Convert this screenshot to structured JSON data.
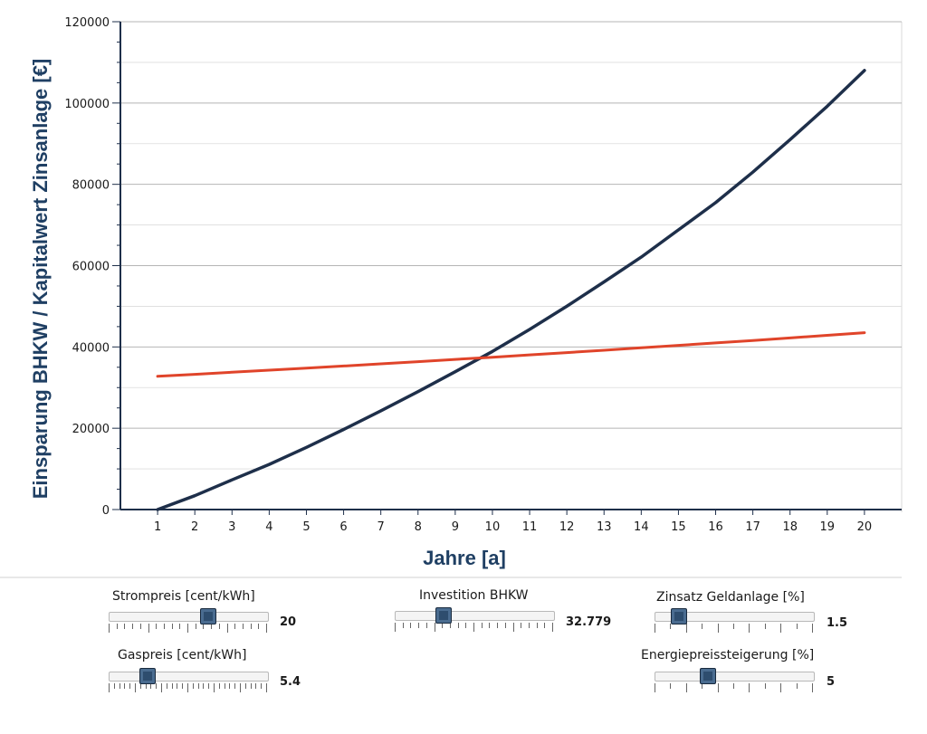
{
  "chart_data": {
    "type": "line",
    "title": "",
    "xlabel": "Jahre [a]",
    "ylabel": "Einsparung BHKW / Kapitalwert Zinsanlage [€]",
    "x": [
      1,
      2,
      3,
      4,
      5,
      6,
      7,
      8,
      9,
      10,
      11,
      12,
      13,
      14,
      15,
      16,
      17,
      18,
      19,
      20
    ],
    "xlim": [
      0,
      21
    ],
    "ylim": [
      0,
      120000
    ],
    "yticks": [
      0,
      20000,
      40000,
      60000,
      80000,
      100000,
      120000
    ],
    "grid": true,
    "series": [
      {
        "color": "#1e2f4a",
        "values": [
          0,
          3400,
          7300,
          11100,
          15300,
          19700,
          24300,
          29000,
          33900,
          38900,
          44300,
          50000,
          56000,
          62100,
          68800,
          75500,
          83000,
          91000,
          99200,
          108000
        ]
      },
      {
        "color": "#e0442a",
        "values": [
          32779,
          33271,
          33770,
          34276,
          34791,
          35313,
          35842,
          36380,
          36926,
          37479,
          38042,
          38612,
          39192,
          39779,
          40376,
          40982,
          41596,
          42220,
          42854,
          43497
        ]
      }
    ]
  },
  "controls": {
    "strompreis": {
      "label": "Strompreis [cent/kWh]",
      "value": "20",
      "fraction": 0.62
    },
    "gaspreis": {
      "label": "Gaspreis [cent/kWh]",
      "value": "5.4",
      "fraction": 0.24
    },
    "investition": {
      "label": "Investition BHKW",
      "value": "32.779",
      "fraction": 0.3
    },
    "zinsatz": {
      "label": "Zinsatz Geldanlage [%]",
      "value": "1.5",
      "fraction": 0.15
    },
    "energiepreis": {
      "label": "Energiepreissteigerung [%]",
      "value": "5",
      "fraction": 0.33
    }
  }
}
